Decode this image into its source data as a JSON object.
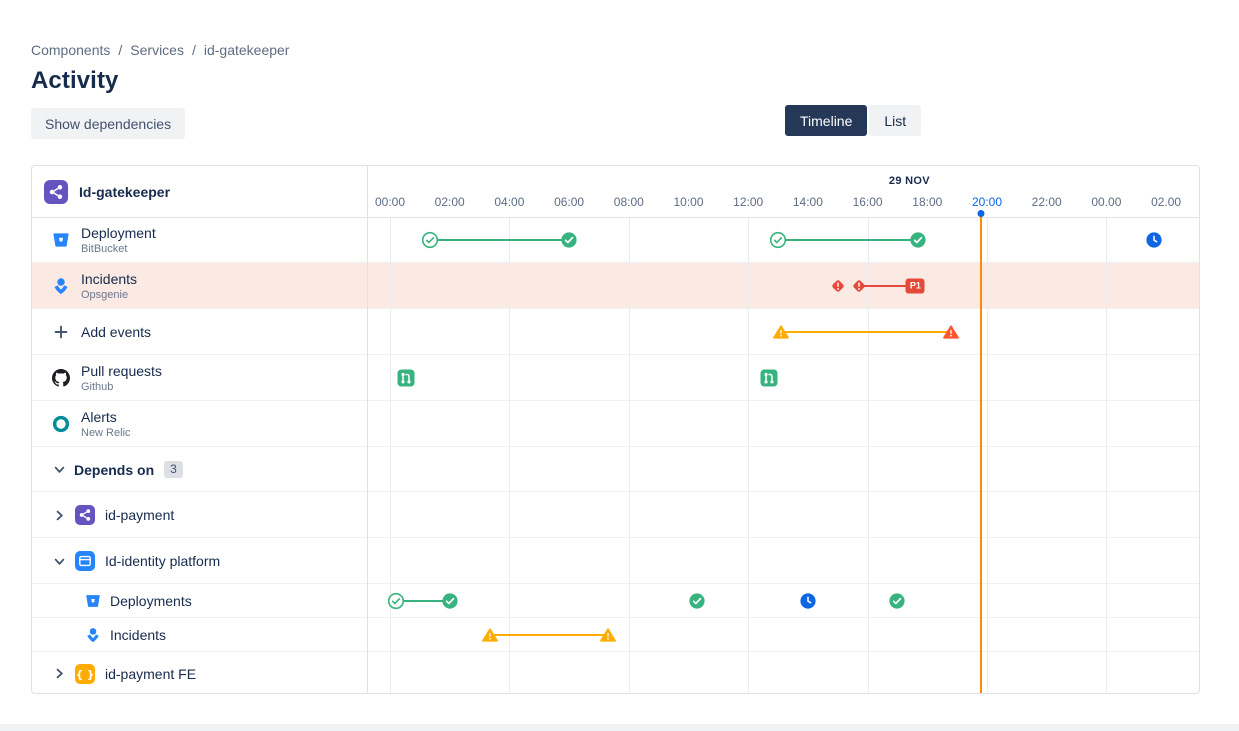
{
  "colors": {
    "green": "#36B37E",
    "red": "#E5493A",
    "red_orange": "#FF5630",
    "orange": "#FFAB00",
    "blue": "#0C66E4",
    "purple": "#6554C0",
    "bitbucket_blue": "#2684FF",
    "github_black": "#1B1F23",
    "newrelic_teal": "#008C99",
    "component_orange": "#FFAB00",
    "now_line": "#FF8B00",
    "highlight_row": "#FBE9E4",
    "active_tick": "#0C66E4"
  },
  "breadcrumb": {
    "items": [
      "Components",
      "Services",
      "id-gatekeeper"
    ],
    "separator": "/"
  },
  "page": {
    "title": "Activity"
  },
  "toolbar": {
    "show_dependencies_label": "Show dependencies",
    "view_toggle": [
      {
        "label": "Timeline",
        "active": true
      },
      {
        "label": "List",
        "active": false
      }
    ]
  },
  "panel": {
    "header": {
      "label": "Id-gatekeeper",
      "icon": "component-purple-icon"
    },
    "rows": [
      {
        "id": "deployment",
        "label": "Deployment",
        "sublabel": "BitBucket",
        "icon": "bitbucket-icon",
        "kind": "source"
      },
      {
        "id": "incidents",
        "label": "Incidents",
        "sublabel": "Opsgenie",
        "icon": "opsgenie-icon",
        "kind": "source",
        "highlighted": true
      },
      {
        "id": "add-events",
        "label": "Add events",
        "icon": "plus-icon",
        "kind": "action"
      },
      {
        "id": "pull-requests",
        "label": "Pull requests",
        "sublabel": "Github",
        "icon": "github-icon",
        "kind": "source"
      },
      {
        "id": "alerts",
        "label": "Alerts",
        "sublabel": "New Relic",
        "icon": "newrelic-icon",
        "kind": "source"
      },
      {
        "id": "depends-on",
        "label": "Depends on",
        "badge": "3",
        "chevron": "down",
        "kind": "section"
      },
      {
        "id": "id-payment",
        "label": "id-payment",
        "icon": "component-purple-icon",
        "chevron": "right",
        "kind": "component"
      },
      {
        "id": "id-identity-platform",
        "label": "Id-identity platform",
        "icon": "component-blue-icon",
        "chevron": "down",
        "kind": "component"
      },
      {
        "id": "identity-deployments",
        "label": "Deployments",
        "icon": "bitbucket-icon",
        "kind": "subsource"
      },
      {
        "id": "identity-incidents",
        "label": "Incidents",
        "icon": "opsgenie-icon",
        "kind": "subsource"
      },
      {
        "id": "id-payment-fe",
        "label": "id-payment FE",
        "icon": "component-orange-icon",
        "chevron": "right",
        "kind": "component"
      }
    ]
  },
  "timeline": {
    "date_label": "29 NOV",
    "ticks": [
      "00:00",
      "02:00",
      "04:00",
      "06:00",
      "08:00",
      "10:00",
      "12:00",
      "14:00",
      "16:00",
      "18:00",
      "20:00",
      "22:00",
      "00.00",
      "02.00"
    ],
    "active_tick": "20:00",
    "now_hour": 19.8,
    "events": [
      {
        "row": "deployment",
        "type": "span",
        "color": "green",
        "start_hour": 1.35,
        "end_hour": 6.0,
        "start_icon": "check-outline",
        "end_icon": "check-filled"
      },
      {
        "row": "deployment",
        "type": "span",
        "color": "green",
        "start_hour": 13.0,
        "end_hour": 17.7,
        "start_icon": "check-outline",
        "end_icon": "check-filled"
      },
      {
        "row": "deployment",
        "type": "point",
        "color": "blue",
        "hour": 25.6,
        "icon": "clock"
      },
      {
        "row": "incidents",
        "type": "point",
        "color": "red",
        "hour": 15.0,
        "icon": "incident"
      },
      {
        "row": "incidents",
        "type": "span",
        "color": "red",
        "start_hour": 15.7,
        "end_hour": 17.6,
        "start_icon": "incident",
        "end_icon": "p1-badge",
        "badge_label": "P1"
      },
      {
        "row": "add-events",
        "type": "span",
        "color": "orange",
        "end_color": "red_orange",
        "start_hour": 13.1,
        "end_hour": 18.8,
        "start_icon": "warning",
        "end_icon": "warning"
      },
      {
        "row": "pull-requests",
        "type": "point",
        "color": "green",
        "hour": 0.55,
        "icon": "pull-request"
      },
      {
        "row": "pull-requests",
        "type": "point",
        "color": "green",
        "hour": 12.7,
        "icon": "pull-request"
      },
      {
        "row": "identity-deployments",
        "type": "span",
        "color": "green",
        "start_hour": 0.2,
        "end_hour": 2.0,
        "start_icon": "check-outline",
        "end_icon": "check-filled"
      },
      {
        "row": "identity-deployments",
        "type": "point",
        "color": "green",
        "hour": 10.3,
        "icon": "check-filled"
      },
      {
        "row": "identity-deployments",
        "type": "point",
        "color": "blue",
        "hour": 14.0,
        "icon": "clock"
      },
      {
        "row": "identity-deployments",
        "type": "point",
        "color": "green",
        "hour": 17.0,
        "icon": "check-filled"
      },
      {
        "row": "identity-incidents",
        "type": "span",
        "color": "orange",
        "start_hour": 3.35,
        "end_hour": 7.3,
        "start_icon": "warning",
        "end_icon": "warning"
      }
    ]
  }
}
